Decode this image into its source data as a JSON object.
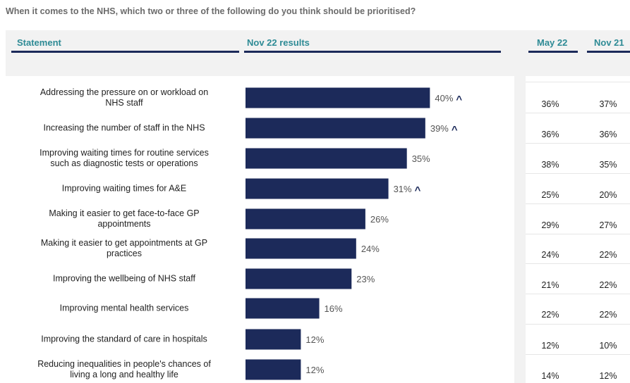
{
  "question": "When it comes to the NHS, which two or three of the following do you think should be prioritised?",
  "headers": {
    "statement": "Statement",
    "current": "Nov 22 results",
    "comp1": "May 22",
    "comp2": "Nov 21"
  },
  "colors": {
    "bar": "#1c2a5a",
    "header_text": "#2e8b95",
    "header_bg": "#f2f2f2",
    "caret": "#1c2a5a"
  },
  "chart_data": {
    "type": "bar",
    "orientation": "horizontal",
    "title": "",
    "xlabel": "",
    "ylabel": "",
    "xlim": [
      0,
      58
    ],
    "categories": [
      "Addressing the pressure on or workload on NHS staff",
      "Increasing the number of staff in the NHS",
      "Improving waiting times for routine services such as diagnostic tests or operations",
      "Improving waiting times for A&E",
      "Making it easier to get face-to-face GP appointments",
      "Making it easier to get appointments at GP practices",
      "Improving the wellbeing of NHS staff",
      "Improving mental health services",
      "Improving the standard of care in hospitals",
      "Reducing inequalities in people's chances of living a long and healthy life"
    ],
    "series": [
      {
        "name": "Nov 22 results",
        "values": [
          40,
          39,
          35,
          31,
          26,
          24,
          23,
          16,
          12,
          12
        ]
      }
    ],
    "value_labels": [
      "40%",
      "39%",
      "35%",
      "31%",
      "26%",
      "24%",
      "23%",
      "16%",
      "12%",
      "12%"
    ],
    "significance_marker": [
      true,
      true,
      false,
      true,
      false,
      false,
      false,
      false,
      false,
      false
    ],
    "marker_symbol": "^"
  },
  "rows": [
    {
      "statement_lines": [
        "Addressing the pressure on or workload on",
        "NHS staff"
      ],
      "may22": "36%",
      "nov21": "37%"
    },
    {
      "statement_lines": [
        "Increasing the number of staff in the NHS"
      ],
      "may22": "36%",
      "nov21": "36%"
    },
    {
      "statement_lines": [
        "Improving waiting times for routine services",
        "such as diagnostic tests or operations"
      ],
      "may22": "38%",
      "nov21": "35%"
    },
    {
      "statement_lines": [
        "Improving waiting times for A&E"
      ],
      "may22": "25%",
      "nov21": "20%"
    },
    {
      "statement_lines": [
        "Making it easier to get face-to-face GP",
        "appointments"
      ],
      "may22": "29%",
      "nov21": "27%"
    },
    {
      "statement_lines": [
        "Making it easier to get appointments at GP",
        "practices"
      ],
      "may22": "24%",
      "nov21": "22%"
    },
    {
      "statement_lines": [
        "Improving the wellbeing of NHS staff"
      ],
      "may22": "21%",
      "nov21": "22%"
    },
    {
      "statement_lines": [
        "Improving mental health services"
      ],
      "may22": "22%",
      "nov21": "22%"
    },
    {
      "statement_lines": [
        "Improving the standard of care in hospitals"
      ],
      "may22": "12%",
      "nov21": "10%"
    },
    {
      "statement_lines": [
        "Reducing inequalities in people's chances of",
        "living a long and healthy life"
      ],
      "may22": "14%",
      "nov21": "12%"
    }
  ]
}
